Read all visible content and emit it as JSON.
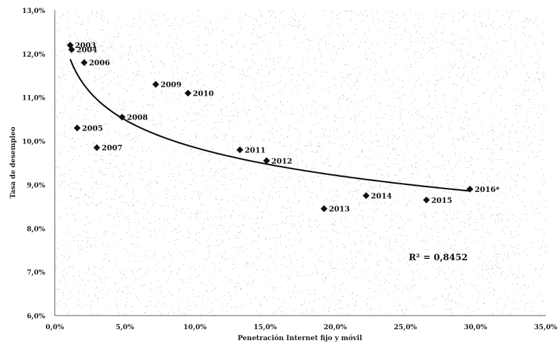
{
  "chart_data": {
    "type": "scatter",
    "title": "",
    "xlabel": "Penetración Internet fijo y móvil",
    "ylabel": "Tasa de desempleo",
    "xlim": [
      0,
      35
    ],
    "ylim": [
      6,
      13
    ],
    "x_ticks": [
      "0,0%",
      "5,0%",
      "10,0%",
      "15,0%",
      "20,0%",
      "25,0%",
      "30,0%",
      "35,0%"
    ],
    "y_ticks": [
      "6,0%",
      "7,0%",
      "8,0%",
      "9,0%",
      "10,0%",
      "11,0%",
      "12,0%",
      "13,0%"
    ],
    "grid": false,
    "legend": "none",
    "marker_color": "#111111",
    "trendline": {
      "type": "log",
      "x_from": 1.1,
      "x_to": 29.6,
      "r2_label": "R² = 0,8452"
    },
    "points": [
      {
        "label": "2003",
        "x": 1.1,
        "y": 12.2
      },
      {
        "label": "2004",
        "x": 1.2,
        "y": 12.1
      },
      {
        "label": "2005",
        "x": 1.6,
        "y": 10.3
      },
      {
        "label": "2006",
        "x": 2.1,
        "y": 11.8
      },
      {
        "label": "2007",
        "x": 3.0,
        "y": 9.85
      },
      {
        "label": "2008",
        "x": 4.8,
        "y": 10.55
      },
      {
        "label": "2009",
        "x": 7.2,
        "y": 11.3
      },
      {
        "label": "2010",
        "x": 9.5,
        "y": 11.1
      },
      {
        "label": "2011",
        "x": 13.2,
        "y": 9.8
      },
      {
        "label": "2012",
        "x": 15.1,
        "y": 9.55
      },
      {
        "label": "2013",
        "x": 19.2,
        "y": 8.45
      },
      {
        "label": "2014",
        "x": 22.2,
        "y": 8.75
      },
      {
        "label": "2015",
        "x": 26.5,
        "y": 8.65
      },
      {
        "label": "2016*",
        "x": 29.6,
        "y": 8.9
      }
    ]
  }
}
